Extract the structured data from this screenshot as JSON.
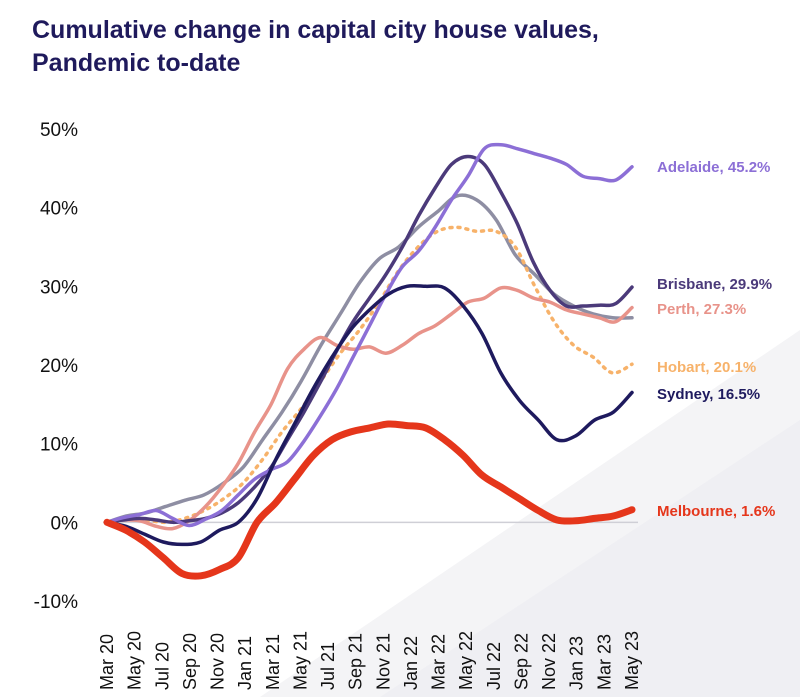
{
  "chart_data": {
    "type": "line",
    "title_line1": "Cumulative change in capital city house values,",
    "title_line2": "Pandemic to-date",
    "ylim": [
      -10,
      50
    ],
    "y_ticks": [
      "-10%",
      "0%",
      "10%",
      "20%",
      "30%",
      "40%",
      "50%"
    ],
    "y_tick_values": [
      -10,
      0,
      10,
      20,
      30,
      40,
      50
    ],
    "x_ticks": [
      "Mar 20",
      "May 20",
      "Jul 20",
      "Sep 20",
      "Nov 20",
      "Jan 21",
      "Mar 21",
      "May 21",
      "Jul 21",
      "Sep 21",
      "Nov 21",
      "Jan 22",
      "Mar 22",
      "May 22",
      "Jul 22",
      "Sep 22",
      "Nov 22",
      "Jan 23",
      "Mar 23",
      "May 23"
    ],
    "grid": false,
    "legend": "end-of-line labels",
    "series": [
      {
        "name": "Adelaide",
        "label": "Adelaide, 45.2%",
        "color": "#8c6fd6",
        "dash": false,
        "width": 3.5,
        "values": [
          0,
          0.6,
          1.0,
          1.5,
          0.5,
          -0.4,
          0.4,
          1.5,
          3.5,
          5.5,
          6.7,
          7.7,
          10.3,
          13.5,
          17.0,
          21.0,
          25.0,
          29.0,
          32.5,
          34.5,
          37.5,
          41.0,
          44.0,
          47.5,
          48.0,
          47.5,
          46.9,
          46.3,
          45.5,
          44.0,
          43.7,
          43.5,
          45.2
        ]
      },
      {
        "name": "Brisbane",
        "label": "Brisbane, 29.9%",
        "color": "#4b3a7a",
        "dash": false,
        "width": 3.5,
        "values": [
          0,
          0.3,
          0.5,
          0.3,
          0.0,
          0.2,
          0.5,
          1.2,
          2.5,
          4.5,
          7.0,
          10.5,
          14.0,
          17.8,
          21.8,
          25.5,
          28.5,
          31.5,
          35.0,
          39.0,
          42.5,
          45.5,
          46.5,
          45.5,
          42.0,
          38.0,
          33.0,
          29.5,
          27.5,
          27.5,
          27.6,
          27.8,
          29.9
        ]
      },
      {
        "name": "Perth",
        "label": "Perth, 27.3%",
        "color": "#e8938a",
        "dash": false,
        "width": 3.5,
        "values": [
          0,
          0.3,
          0.2,
          -0.5,
          -0.8,
          0.2,
          2.0,
          4.5,
          7.5,
          11.5,
          15.0,
          19.5,
          22.0,
          23.5,
          22.5,
          22.0,
          22.3,
          21.5,
          22.5,
          24.0,
          25.0,
          26.5,
          28.0,
          28.5,
          29.8,
          29.5,
          28.5,
          28.0,
          27.0,
          26.5,
          26.0,
          25.5,
          27.3
        ]
      },
      {
        "name": "Hobart",
        "label": "Hobart, 20.1%",
        "color": "#f7b26a",
        "dash": true,
        "width": 3.5,
        "values": [
          0,
          0.5,
          0.3,
          0.0,
          0.5,
          1.5,
          3.0,
          5.0,
          8.0,
          11.5,
          14.5,
          18.0,
          21.5,
          24.5,
          28.0,
          32.0,
          35.0,
          37.0,
          37.5,
          37.0,
          37.0,
          35.0,
          30.0,
          25.5,
          22.5,
          21.0,
          19.0,
          20.1
        ]
      },
      {
        "name": "Sydney",
        "label": "Sydney, 16.5%",
        "color": "#1e1a5e",
        "dash": false,
        "width": 3.5,
        "values": [
          0,
          -0.5,
          -1.5,
          -2.5,
          -2.8,
          -2.5,
          -1.0,
          0.0,
          3.0,
          8.0,
          12.5,
          17.0,
          21.0,
          24.5,
          27.0,
          29.0,
          30.0,
          30.0,
          29.8,
          27.5,
          24.0,
          19.0,
          15.5,
          13.0,
          10.5,
          11.0,
          13.0,
          14.0,
          16.5
        ]
      },
      {
        "name": "Melbourne",
        "label": "Melbourne, 1.6%",
        "color": "#e5361b",
        "dash": false,
        "width": 7,
        "values": [
          0,
          -1.0,
          -2.5,
          -4.5,
          -6.5,
          -6.8,
          -6.0,
          -4.5,
          0.0,
          2.5,
          5.5,
          8.5,
          10.5,
          11.5,
          12.0,
          12.5,
          12.3,
          12.0,
          10.5,
          8.5,
          6.0,
          4.5,
          3.0,
          1.5,
          0.3,
          0.2,
          0.5,
          0.8,
          1.6
        ]
      },
      {
        "name": "Melbourne-shadow",
        "label": "",
        "color": "#e5361b",
        "dash": false,
        "width": 0,
        "values": []
      },
      {
        "name": "Grey-series",
        "label": "",
        "color": "#8e8ea3",
        "dash": false,
        "width": 3.5,
        "values": [
          0,
          0.8,
          1.2,
          2.0,
          2.8,
          3.5,
          5.0,
          7.0,
          10.5,
          14.0,
          18.0,
          22.5,
          26.5,
          30.5,
          33.5,
          35.0,
          37.5,
          39.5,
          41.5,
          41.0,
          38.5,
          34.0,
          31.5,
          29.0,
          27.5,
          26.5,
          26.0,
          26.0
        ]
      }
    ]
  }
}
